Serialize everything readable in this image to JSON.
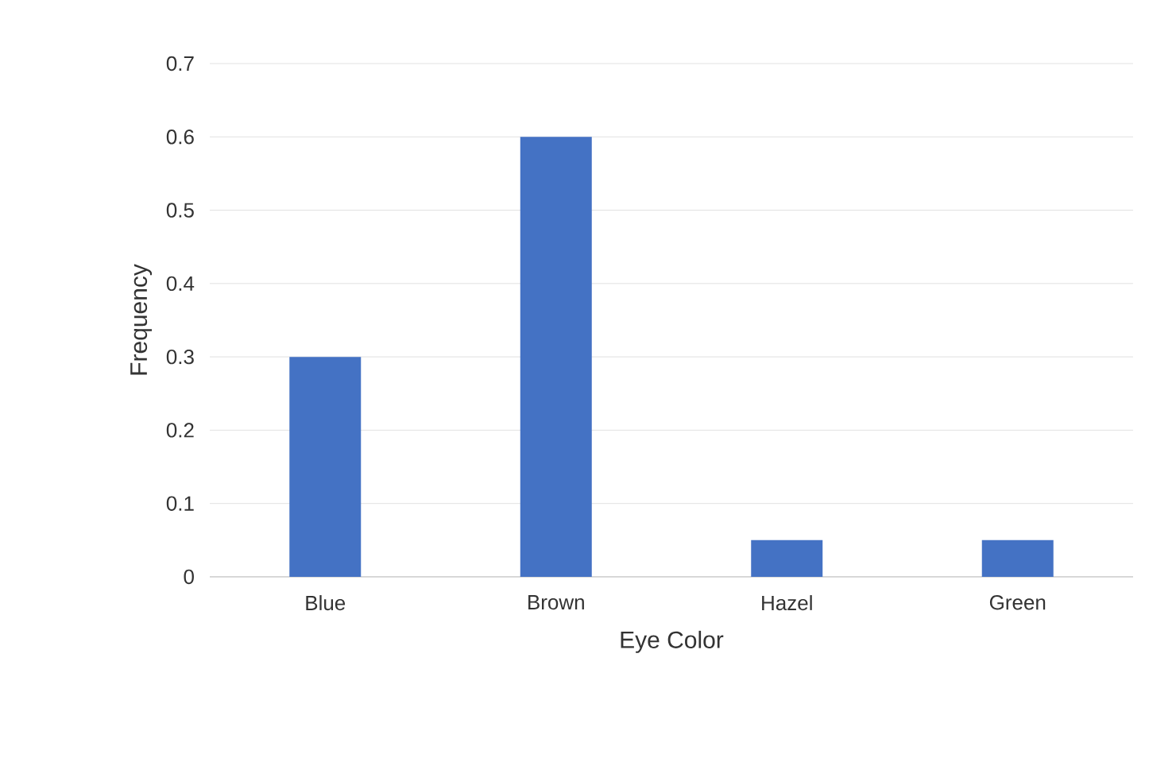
{
  "chart_data": {
    "type": "bar",
    "xlabel": "Eye Color",
    "ylabel": "Frequency",
    "categories": [
      "Blue",
      "Brown",
      "Hazel",
      "Green"
    ],
    "values": [
      0.3,
      0.6,
      0.05,
      0.05
    ],
    "color": "#4472c4",
    "ylim": [
      0,
      0.7
    ],
    "yticks": [
      0,
      0.1,
      0.2,
      0.3,
      0.4,
      0.5,
      0.6,
      0.7
    ],
    "grid": "y"
  }
}
